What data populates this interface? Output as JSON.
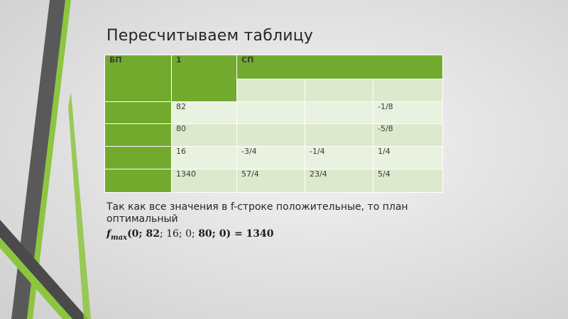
{
  "slide": {
    "title": "Пересчитываем таблицу",
    "table": {
      "header": {
        "bp": "БП",
        "col1": "1",
        "sp": "СП"
      },
      "subheader": [
        "",
        "",
        ""
      ],
      "rows": [
        {
          "bp": "",
          "c1": "82",
          "c2": "",
          "c3": "",
          "c4": "-1/8"
        },
        {
          "bp": "",
          "c1": "80",
          "c2": "",
          "c3": "",
          "c4": "-5/8"
        },
        {
          "bp": "",
          "c1": "16",
          "c2": "-3/4",
          "c3": "-1/4",
          "c4": "1/4"
        },
        {
          "bp": "",
          "c1": "1340",
          "c2": "57/4",
          "c3": "23/4",
          "c4": "5/4"
        }
      ]
    },
    "conclusion": "Так как  все значения в f-строке положительные, то план оптимальный",
    "formula": {
      "f": "f",
      "sub": "max",
      "args_lead": "(0; 82",
      "args_mid": "; 16; 0; ",
      "args_bold": "80",
      "args_tail": "; 0) = 1340"
    }
  }
}
